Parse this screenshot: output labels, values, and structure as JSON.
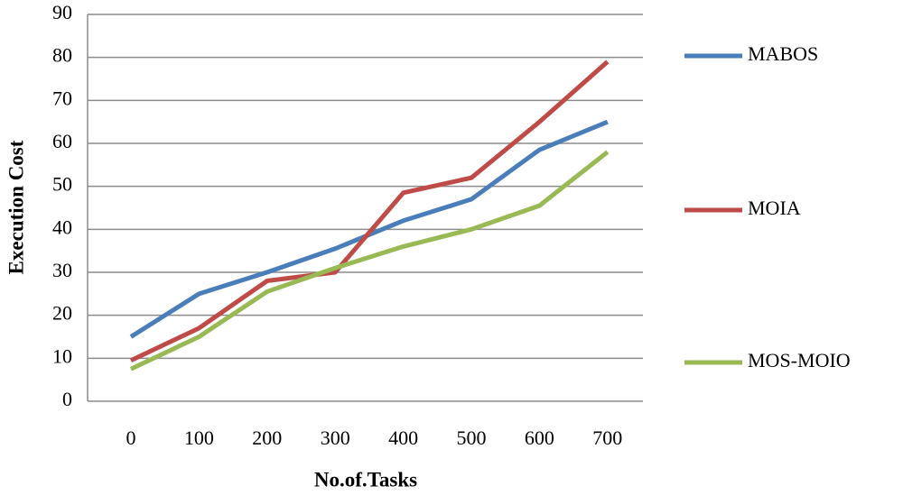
{
  "chart_data": {
    "type": "line",
    "x_label": "No.of.Tasks",
    "y_label": "Execution Cost",
    "categories": [
      "0",
      "100",
      "200",
      "300",
      "400",
      "500",
      "600",
      "700"
    ],
    "series": [
      {
        "name": "MABOS",
        "color": "#4a7ebb",
        "values": [
          15,
          25,
          30,
          35.5,
          42,
          47,
          58.5,
          65
        ]
      },
      {
        "name": "MOIA",
        "color": "#be4b48",
        "values": [
          9.5,
          17,
          28,
          30,
          48.5,
          52,
          65,
          79
        ]
      },
      {
        "name": "MOS-MOIO",
        "color": "#98b954",
        "values": [
          7.5,
          15,
          25.5,
          31,
          36,
          40,
          45.5,
          58
        ]
      }
    ],
    "ylim": [
      0,
      90
    ],
    "yticks": [
      0,
      10,
      20,
      30,
      40,
      50,
      60,
      70,
      80,
      90
    ],
    "grid": true,
    "legend": "right"
  }
}
